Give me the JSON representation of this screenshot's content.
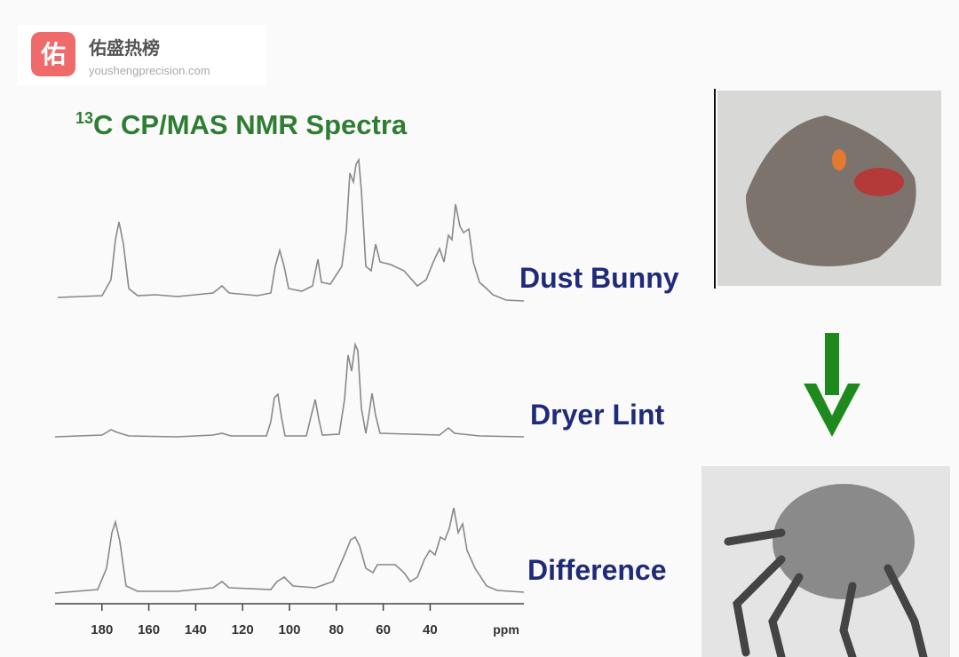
{
  "watermark": {
    "icon": "佑",
    "name": "佑盛热榜",
    "url": "youshengprecision.com"
  },
  "chart_data": {
    "type": "line",
    "title": {
      "sup": "13",
      "main": "C CP/MAS NMR Spectra"
    },
    "series": [
      {
        "name": "Dust Bunny"
      },
      {
        "name": "Dryer Lint"
      },
      {
        "name": "Difference"
      }
    ],
    "xlim": [
      200,
      0
    ],
    "xticks": [
      180,
      160,
      140,
      120,
      100,
      80,
      60,
      40
    ],
    "xlabel": "ppm"
  }
}
